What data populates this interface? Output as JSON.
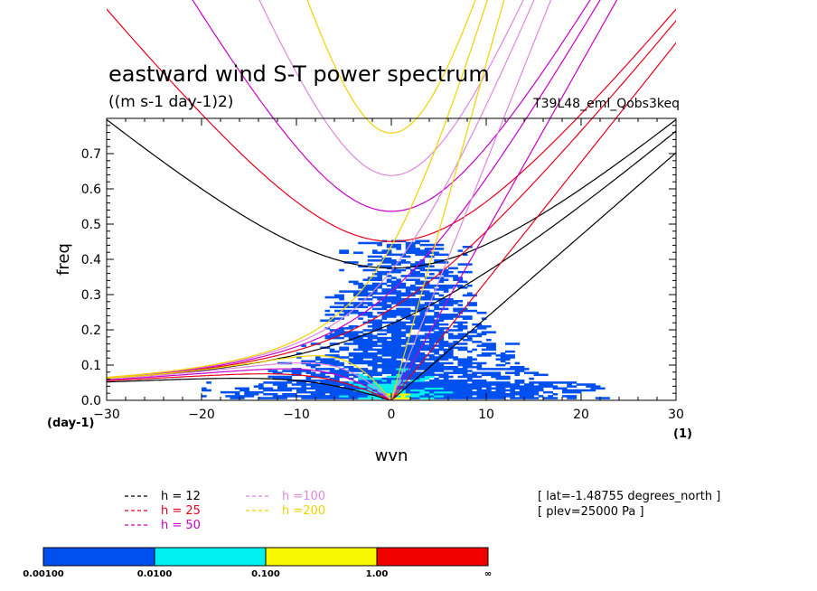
{
  "title": "eastward wind S-T power spectrum",
  "subtitle": "((m s-1 day-1)2)",
  "run_name": "T39L48_eml_Qobs3keq",
  "chart_data": {
    "type": "heatmap",
    "title": "eastward wind S-T power spectrum",
    "xlabel": "wvn",
    "ylabel": "freq",
    "x_unit": "(1)",
    "y_unit": "(day-1)",
    "xlim": [
      -30,
      30
    ],
    "ylim": [
      0,
      0.8
    ],
    "xticks": [
      -30,
      -20,
      -10,
      0,
      10,
      20,
      30
    ],
    "yticks": [
      0.0,
      0.1,
      0.2,
      0.3,
      0.4,
      0.5,
      0.6,
      0.7
    ],
    "ytick_labels": [
      "0.0",
      "0.1",
      "0.2",
      "0.3",
      "0.4",
      "0.5",
      "0.6",
      "0.7"
    ],
    "dispersion_curves": [
      {
        "label": "h = 12",
        "h": 12,
        "color": "#000000"
      },
      {
        "label": "h = 25",
        "h": 25,
        "color": "#e8001c"
      },
      {
        "label": "h = 50",
        "h": 50,
        "color": "#c800c8"
      },
      {
        "label": "h =100",
        "h": 100,
        "color": "#dd88dd"
      },
      {
        "label": "h =200",
        "h": 200,
        "color": "#f2d200"
      }
    ],
    "colorbar": {
      "levels": [
        "0.00100",
        "0.0100",
        "0.100",
        "1.00",
        "∞"
      ],
      "colors": [
        "#0050f0",
        "#00f0f0",
        "#f8f800",
        "#f00000"
      ]
    },
    "power_regions": [
      {
        "level": 1,
        "x_range": [
          -18,
          20
        ],
        "y_range": [
          0.0,
          0.44
        ],
        "note": "sparse blue speckle"
      },
      {
        "level": 2,
        "x_range": [
          -6,
          8
        ],
        "y_range": [
          0.0,
          0.1
        ],
        "note": "cyan core near origin"
      },
      {
        "level": 3,
        "x_range": [
          -1,
          1
        ],
        "y_range": [
          0.0,
          0.02
        ],
        "note": "yellow at origin"
      }
    ]
  },
  "info": {
    "lat": "[ lat=-1.48755 degrees_north ]",
    "plev": "[ plev=25000 Pa ]"
  }
}
